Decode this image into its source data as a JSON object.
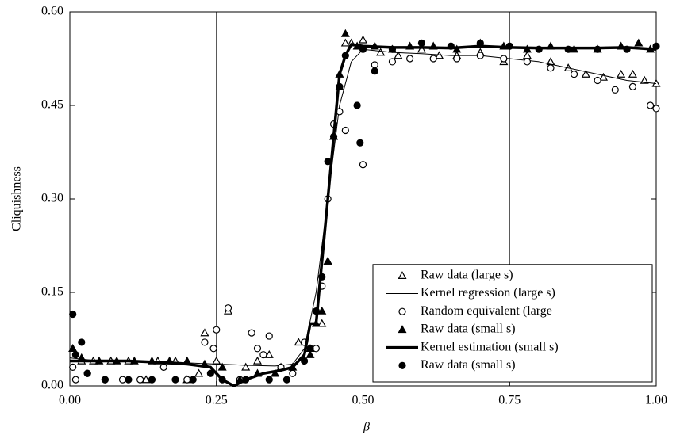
{
  "chart_data": {
    "type": "scatter",
    "xlabel": "β",
    "ylabel": "Cliquishness",
    "xlim": [
      0,
      1
    ],
    "ylim": [
      0,
      0.6
    ],
    "xticks": [
      {
        "value": 0,
        "label": "0.00"
      },
      {
        "value": 0.25,
        "label": "0.25"
      },
      {
        "value": 0.5,
        "label": "0.50"
      },
      {
        "value": 0.75,
        "label": "0.75"
      },
      {
        "value": 1,
        "label": "1.00"
      }
    ],
    "yticks": [
      {
        "value": 0,
        "label": "0.00"
      },
      {
        "value": 0.15,
        "label": "0.15"
      },
      {
        "value": 0.3,
        "label": "0.30"
      },
      {
        "value": 0.45,
        "label": "0.45"
      },
      {
        "value": 0.6,
        "label": "0.60"
      }
    ],
    "grid": "x",
    "legend": "lower right",
    "series": [
      {
        "name": "Raw data (large s)",
        "kind": "scatter",
        "marker": "open-triangle",
        "color": "#000000",
        "x": [
          0.005,
          0.02,
          0.04,
          0.07,
          0.1,
          0.13,
          0.15,
          0.18,
          0.2,
          0.22,
          0.23,
          0.25,
          0.27,
          0.3,
          0.32,
          0.34,
          0.36,
          0.39,
          0.41,
          0.43,
          0.44,
          0.45,
          0.46,
          0.47,
          0.48,
          0.5,
          0.53,
          0.56,
          0.6,
          0.63,
          0.66,
          0.7,
          0.74,
          0.78,
          0.82,
          0.85,
          0.88,
          0.91,
          0.94,
          0.96,
          0.98,
          1.0
        ],
        "values": [
          0.06,
          0.04,
          0.04,
          0.04,
          0.04,
          0.01,
          0.04,
          0.04,
          0.01,
          0.02,
          0.085,
          0.04,
          0.12,
          0.03,
          0.04,
          0.05,
          0.03,
          0.07,
          0.06,
          0.1,
          0.2,
          0.4,
          0.48,
          0.55,
          0.55,
          0.555,
          0.535,
          0.53,
          0.54,
          0.53,
          0.53,
          0.535,
          0.52,
          0.53,
          0.52,
          0.51,
          0.5,
          0.495,
          0.5,
          0.5,
          0.49,
          0.485
        ]
      },
      {
        "name": "Kernel regression (large s)",
        "kind": "line",
        "linewidth": 1,
        "color": "#000000",
        "x": [
          0,
          0.05,
          0.1,
          0.15,
          0.2,
          0.25,
          0.28,
          0.3,
          0.35,
          0.38,
          0.4,
          0.42,
          0.44,
          0.46,
          0.48,
          0.5,
          0.55,
          0.6,
          0.65,
          0.7,
          0.75,
          0.8,
          0.85,
          0.9,
          0.95,
          1.0
        ],
        "values": [
          0.045,
          0.04,
          0.04,
          0.04,
          0.037,
          0.035,
          0.034,
          0.033,
          0.032,
          0.035,
          0.06,
          0.15,
          0.3,
          0.45,
          0.52,
          0.54,
          0.535,
          0.533,
          0.53,
          0.53,
          0.525,
          0.52,
          0.51,
          0.5,
          0.49,
          0.485
        ]
      },
      {
        "name": "Random equivalent (large",
        "kind": "scatter",
        "marker": "open-circle",
        "color": "#000000",
        "x": [
          0.005,
          0.01,
          0.03,
          0.06,
          0.09,
          0.12,
          0.16,
          0.2,
          0.23,
          0.245,
          0.25,
          0.27,
          0.29,
          0.31,
          0.32,
          0.33,
          0.34,
          0.36,
          0.38,
          0.4,
          0.42,
          0.43,
          0.44,
          0.45,
          0.46,
          0.47,
          0.5,
          0.52,
          0.55,
          0.58,
          0.62,
          0.66,
          0.7,
          0.74,
          0.78,
          0.82,
          0.86,
          0.9,
          0.93,
          0.96,
          0.99,
          1.0
        ],
        "values": [
          0.03,
          0.01,
          0.02,
          0.01,
          0.01,
          0.01,
          0.03,
          0.01,
          0.07,
          0.06,
          0.09,
          0.125,
          0.01,
          0.085,
          0.06,
          0.05,
          0.08,
          0.03,
          0.02,
          0.07,
          0.06,
          0.16,
          0.3,
          0.42,
          0.44,
          0.41,
          0.355,
          0.515,
          0.52,
          0.525,
          0.525,
          0.525,
          0.53,
          0.525,
          0.52,
          0.51,
          0.5,
          0.49,
          0.475,
          0.48,
          0.45,
          0.445
        ]
      },
      {
        "name": "Raw data (small s)",
        "kind": "scatter",
        "marker": "filled-triangle",
        "color": "#000000",
        "x": [
          0.005,
          0.02,
          0.05,
          0.08,
          0.11,
          0.14,
          0.17,
          0.2,
          0.23,
          0.26,
          0.29,
          0.32,
          0.35,
          0.38,
          0.41,
          0.42,
          0.43,
          0.44,
          0.45,
          0.46,
          0.47,
          0.49,
          0.52,
          0.55,
          0.58,
          0.62,
          0.66,
          0.7,
          0.74,
          0.78,
          0.82,
          0.86,
          0.9,
          0.94,
          0.97,
          0.99
        ],
        "values": [
          0.06,
          0.045,
          0.04,
          0.04,
          0.04,
          0.04,
          0.04,
          0.04,
          0.035,
          0.03,
          0.01,
          0.02,
          0.02,
          0.03,
          0.05,
          0.1,
          0.12,
          0.2,
          0.4,
          0.5,
          0.565,
          0.545,
          0.545,
          0.54,
          0.545,
          0.545,
          0.54,
          0.55,
          0.545,
          0.54,
          0.545,
          0.54,
          0.54,
          0.545,
          0.55,
          0.54
        ]
      },
      {
        "name": "Kernel estimation (small s)",
        "kind": "line",
        "linewidth": 3.5,
        "color": "#000000",
        "x": [
          0,
          0.05,
          0.1,
          0.15,
          0.2,
          0.24,
          0.26,
          0.28,
          0.3,
          0.33,
          0.36,
          0.38,
          0.4,
          0.41,
          0.42,
          0.43,
          0.44,
          0.45,
          0.46,
          0.47,
          0.48,
          0.5,
          0.55,
          0.6,
          0.65,
          0.7,
          0.75,
          0.8,
          0.85,
          0.9,
          0.95,
          1.0
        ],
        "values": [
          0.04,
          0.04,
          0.04,
          0.038,
          0.035,
          0.03,
          0.01,
          0.0,
          0.01,
          0.02,
          0.025,
          0.03,
          0.05,
          0.1,
          0.1,
          0.2,
          0.3,
          0.4,
          0.5,
          0.53,
          0.548,
          0.545,
          0.543,
          0.543,
          0.542,
          0.545,
          0.543,
          0.542,
          0.542,
          0.542,
          0.543,
          0.54
        ]
      },
      {
        "name": "Raw data (small s)",
        "kind": "scatter",
        "marker": "filled-circle",
        "color": "#000000",
        "x": [
          0.005,
          0.01,
          0.02,
          0.03,
          0.06,
          0.1,
          0.14,
          0.18,
          0.21,
          0.24,
          0.26,
          0.3,
          0.34,
          0.37,
          0.4,
          0.41,
          0.42,
          0.43,
          0.44,
          0.45,
          0.46,
          0.47,
          0.49,
          0.495,
          0.5,
          0.52,
          0.55,
          0.6,
          0.65,
          0.7,
          0.75,
          0.8,
          0.85,
          0.9,
          0.95,
          1.0
        ],
        "values": [
          0.115,
          0.05,
          0.07,
          0.02,
          0.01,
          0.01,
          0.01,
          0.01,
          0.01,
          0.02,
          0.01,
          0.01,
          0.01,
          0.01,
          0.04,
          0.06,
          0.12,
          0.175,
          0.36,
          0.4,
          0.48,
          0.53,
          0.45,
          0.39,
          0.54,
          0.505,
          0.54,
          0.55,
          0.545,
          0.55,
          0.545,
          0.54,
          0.54,
          0.54,
          0.54,
          0.545
        ]
      }
    ]
  }
}
